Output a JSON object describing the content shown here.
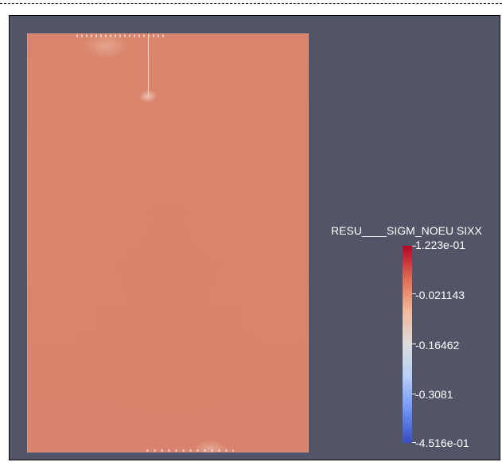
{
  "viewport": {
    "background": "#525568"
  },
  "field_plot": {
    "color": "#d9836a"
  },
  "colorbar": {
    "title": "RESU____SIGM_NOEU SIXX",
    "max_label": "1.223e-01",
    "labels": [
      "-0.021143",
      "-0.16462",
      "-0.3081"
    ],
    "min_label": "-4.516e-01",
    "colormap": [
      "#3a4cc0",
      "#6e93f5",
      "#b8cff7",
      "#dddddd",
      "#f5b89a",
      "#e06c52",
      "#b40426"
    ]
  }
}
